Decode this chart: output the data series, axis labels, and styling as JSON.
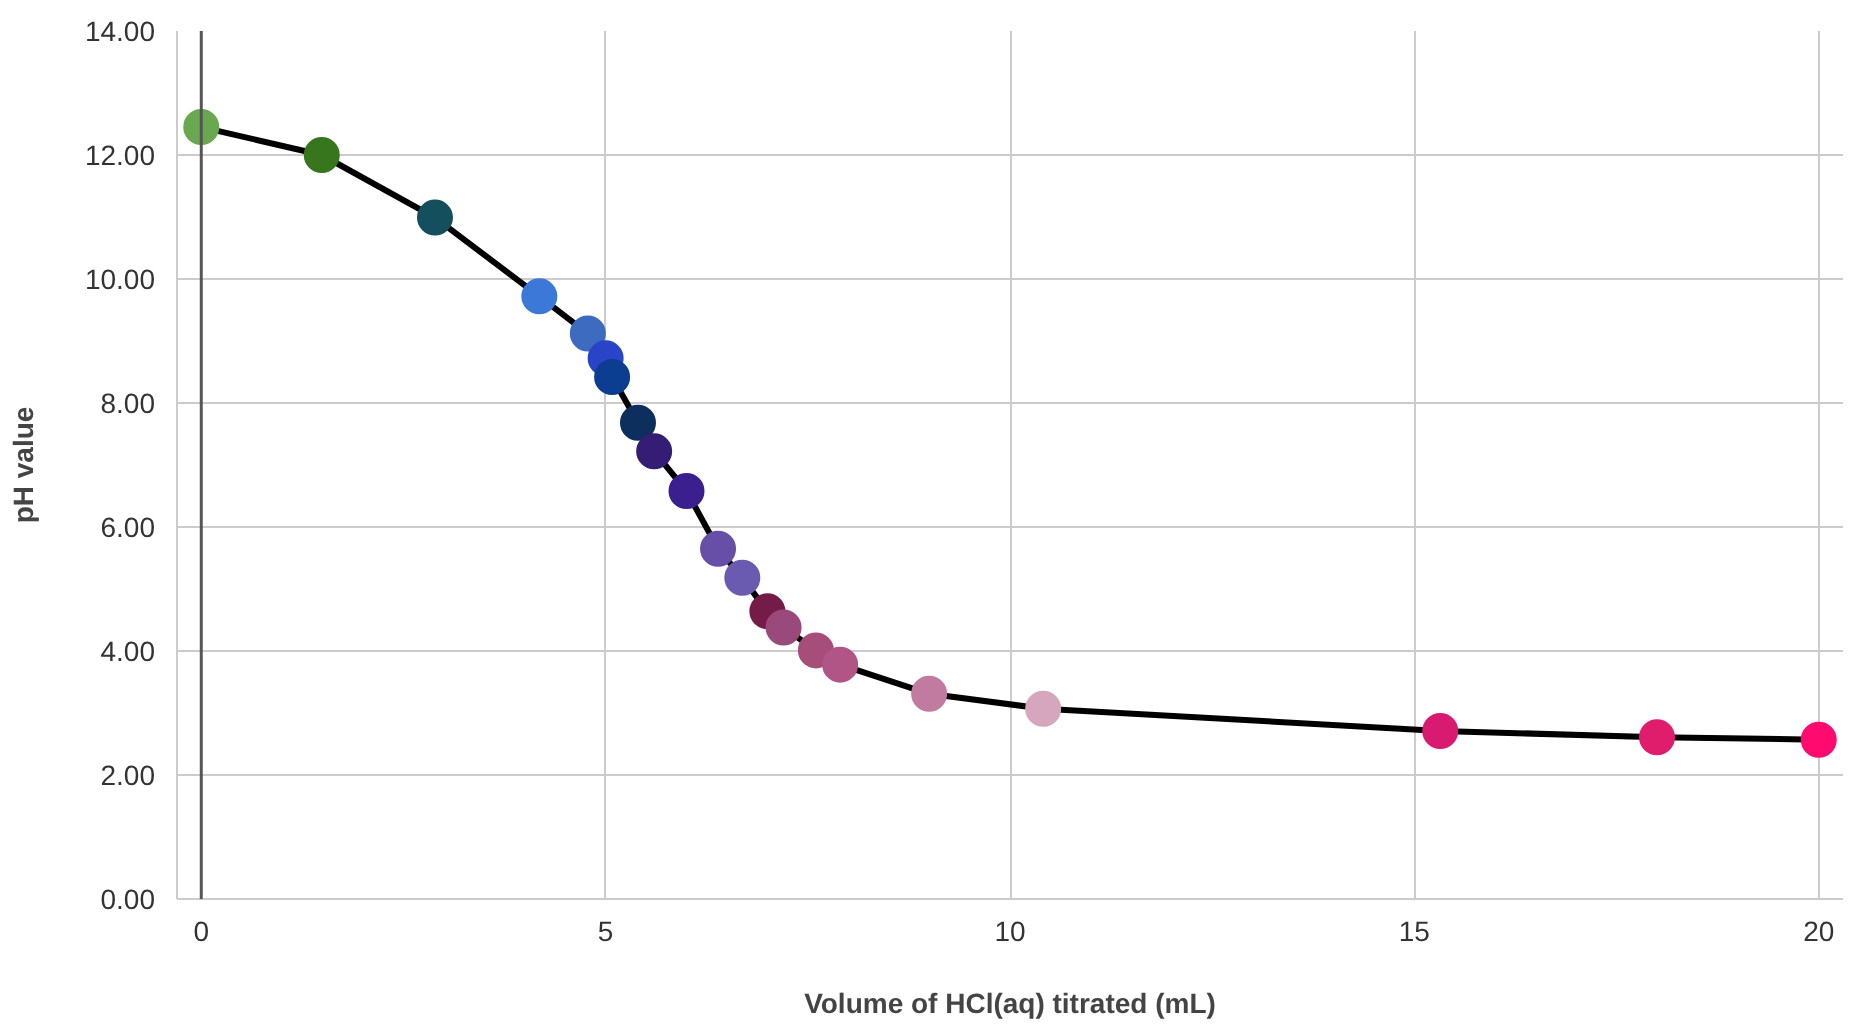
{
  "chart_data": {
    "type": "line",
    "xlabel": "Volume of HCl(aq) titrated (mL)",
    "ylabel": "pH value",
    "x": [
      0,
      1.49,
      2.89,
      4.18,
      4.78,
      5.0,
      5.08,
      5.4,
      5.6,
      6.0,
      6.39,
      6.69,
      7.0,
      7.2,
      7.6,
      7.9,
      9.0,
      10.41,
      15.32,
      18.0,
      20
    ],
    "series": [
      {
        "color": "#000000",
        "values": [
          12.45,
          12.0,
          10.99,
          9.72,
          9.12,
          8.72,
          8.42,
          7.68,
          7.22,
          6.58,
          5.65,
          5.18,
          4.64,
          4.38,
          4.01,
          3.78,
          3.31,
          3.07,
          2.71,
          2.61,
          2.57
        ],
        "colors": [
          "#6aa84f",
          "#38761d",
          "#134f5c",
          "#3c78d8",
          "#3d6bc0",
          "#2a44c8",
          "#0b3d91",
          "#0c2f5e",
          "#351c75",
          "#3b1f8f",
          "#674ea7",
          "#6a5bb0",
          "#741b47",
          "#9a4a7a",
          "#a64d79",
          "#b05585",
          "#c27ba0",
          "#d5a6bd",
          "#d81b70",
          "#e01c6c",
          "#ff0a6e"
        ]
      }
    ],
    "xlim": [
      -0.3,
      20.3
    ],
    "xticks": [
      0,
      5,
      10,
      15,
      20
    ],
    "ylim": [
      0,
      14
    ],
    "yticks": [
      {
        "value": 0,
        "label": "0.00"
      },
      {
        "value": 2,
        "label": "2.00"
      },
      {
        "value": 4,
        "label": "4.00"
      },
      {
        "value": 6,
        "label": "6.00"
      },
      {
        "value": 8,
        "label": "8.00"
      },
      {
        "value": 10,
        "label": "10.00"
      },
      {
        "value": 12,
        "label": "12.00"
      },
      {
        "value": 14,
        "label": "14.00"
      }
    ],
    "grid": true,
    "marker": "circle",
    "line_style": "solid"
  }
}
